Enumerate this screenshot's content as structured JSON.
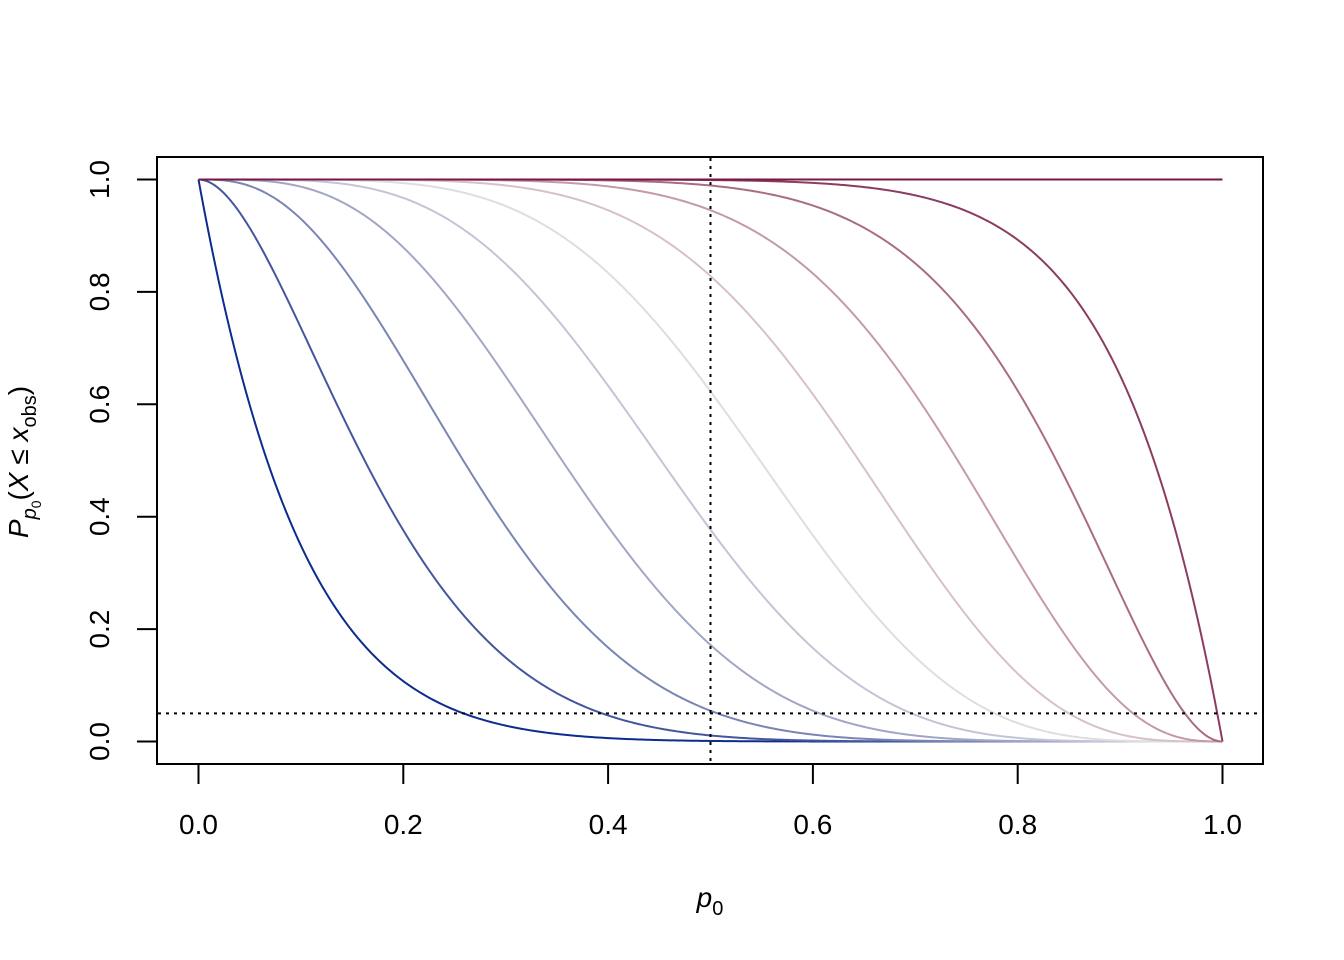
{
  "chart_data": {
    "type": "line",
    "description_free": true,
    "xlabel": {
      "main": "p",
      "sub": "0"
    },
    "ylabel": {
      "main": "P",
      "sub_main": "p",
      "sub_sub": "0",
      "open": "(",
      "var": "X",
      "rel": " ≤ ",
      "x": "x",
      "x_sub": "obs",
      "close": ")"
    },
    "xlim": [
      0,
      1
    ],
    "ylim": [
      0,
      1
    ],
    "x_ticks": [
      "0.0",
      "0.2",
      "0.4",
      "0.6",
      "0.8",
      "1.0"
    ],
    "y_ticks": [
      "0.0",
      "0.2",
      "0.4",
      "0.6",
      "0.8",
      "1.0"
    ],
    "x_tick_values": [
      0,
      0.2,
      0.4,
      0.6,
      0.8,
      1.0
    ],
    "y_tick_values": [
      0,
      0.2,
      0.4,
      0.6,
      0.8,
      1.0
    ],
    "grid": false,
    "n_trials": 10,
    "series": [
      {
        "x_obs": 0,
        "color": "#0c2c8e"
      },
      {
        "x_obs": 1,
        "color": "#44579d"
      },
      {
        "x_obs": 2,
        "color": "#7a85b4"
      },
      {
        "x_obs": 3,
        "color": "#a2a6c6"
      },
      {
        "x_obs": 4,
        "color": "#c4c4d6"
      },
      {
        "x_obs": 5,
        "color": "#dedde3"
      },
      {
        "x_obs": 6,
        "color": "#d7c1c9"
      },
      {
        "x_obs": 7,
        "color": "#c49aaa"
      },
      {
        "x_obs": 8,
        "color": "#a96c86"
      },
      {
        "x_obs": 9,
        "color": "#8b3c62"
      },
      {
        "x_obs": 10,
        "color": "#7a1745"
      }
    ],
    "reference_lines": [
      {
        "orientation": "vertical",
        "value": 0.5,
        "style": "dotted",
        "color": "#000000"
      },
      {
        "orientation": "horizontal",
        "value": 0.05,
        "style": "dotted",
        "color": "#000000"
      }
    ]
  }
}
